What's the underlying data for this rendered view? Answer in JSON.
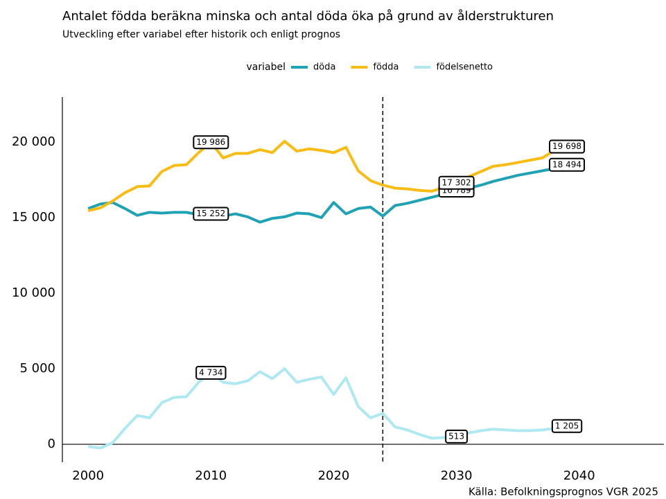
{
  "chart_data": {
    "type": "line",
    "title": "Antalet födda beräkna minska och antal döda öka på grund av ålderstrukturen",
    "subtitle": "Utveckling efter variabel efter historik och enligt prognos",
    "legend_title": "variabel",
    "source": "Källa: Befolkningsprognos VGR 2025",
    "x": [
      2000,
      2001,
      2002,
      2003,
      2004,
      2005,
      2006,
      2007,
      2008,
      2009,
      2010,
      2011,
      2012,
      2013,
      2014,
      2015,
      2016,
      2017,
      2018,
      2019,
      2020,
      2021,
      2022,
      2023,
      2024,
      2025,
      2026,
      2027,
      2028,
      2029,
      2030,
      2031,
      2032,
      2033,
      2034,
      2035,
      2036,
      2037,
      2038,
      2039
    ],
    "series": [
      {
        "name": "döda",
        "color": "#1fa2b4",
        "values": [
          15600,
          15900,
          16000,
          15600,
          15150,
          15350,
          15300,
          15350,
          15350,
          15200,
          15252,
          15100,
          15250,
          15050,
          14700,
          14950,
          15050,
          15300,
          15250,
          15000,
          16000,
          15250,
          15600,
          15700,
          15100,
          15800,
          15950,
          16150,
          16350,
          16550,
          16789,
          16950,
          17150,
          17400,
          17600,
          17800,
          17950,
          18100,
          18250,
          18494
        ],
        "value_labels": [
          null,
          null,
          null,
          null,
          null,
          null,
          null,
          null,
          null,
          null,
          "15 252",
          null,
          null,
          null,
          null,
          null,
          null,
          null,
          null,
          null,
          null,
          null,
          null,
          null,
          null,
          null,
          null,
          null,
          null,
          null,
          "16 789",
          null,
          null,
          null,
          null,
          null,
          null,
          null,
          null,
          "18 494"
        ]
      },
      {
        "name": "födda",
        "color": "#f9bc15",
        "values": [
          15450,
          15650,
          16100,
          16650,
          17050,
          17100,
          18050,
          18450,
          18500,
          19300,
          19986,
          18950,
          19250,
          19250,
          19500,
          19300,
          20050,
          19400,
          19550,
          19450,
          19300,
          19650,
          18100,
          17450,
          17150,
          16950,
          16900,
          16800,
          16750,
          17000,
          17302,
          17700,
          18050,
          18400,
          18500,
          18650,
          18800,
          18950,
          19450,
          19698
        ],
        "value_labels": [
          null,
          null,
          null,
          null,
          null,
          null,
          null,
          null,
          null,
          null,
          "19 986",
          null,
          null,
          null,
          null,
          null,
          null,
          null,
          null,
          null,
          null,
          null,
          null,
          null,
          null,
          null,
          null,
          null,
          null,
          null,
          "17 302",
          null,
          null,
          null,
          null,
          null,
          null,
          null,
          null,
          "19 698"
        ]
      },
      {
        "name": "födelsenetto",
        "color": "#aee8f0",
        "values": [
          -150,
          -250,
          100,
          1050,
          1900,
          1750,
          2750,
          3100,
          3150,
          4100,
          4734,
          4100,
          4000,
          4200,
          4800,
          4350,
          5000,
          4100,
          4300,
          4450,
          3300,
          4400,
          2500,
          1750,
          2050,
          1150,
          950,
          650,
          400,
          450,
          513,
          750,
          900,
          1000,
          950,
          900,
          900,
          950,
          1050,
          1205
        ],
        "value_labels": [
          null,
          null,
          null,
          null,
          null,
          null,
          null,
          null,
          null,
          null,
          "4 734",
          null,
          null,
          null,
          null,
          null,
          null,
          null,
          null,
          null,
          null,
          null,
          null,
          null,
          null,
          null,
          null,
          null,
          null,
          null,
          "513",
          null,
          null,
          null,
          null,
          null,
          null,
          null,
          null,
          "1 205"
        ]
      }
    ],
    "vline": 2024,
    "xlim": [
      1997.9,
      2046.9
    ],
    "xticks": [
      2000,
      2010,
      2020,
      2030,
      2040
    ],
    "ylim": [
      -1190,
      22980
    ],
    "yticks": [
      0,
      {
        "value": 5000,
        "label": "5 000"
      },
      {
        "value": 10000,
        "label": "10 000"
      },
      {
        "value": 15000,
        "label": "15 000"
      },
      {
        "value": 20000,
        "label": "20 000"
      }
    ]
  }
}
